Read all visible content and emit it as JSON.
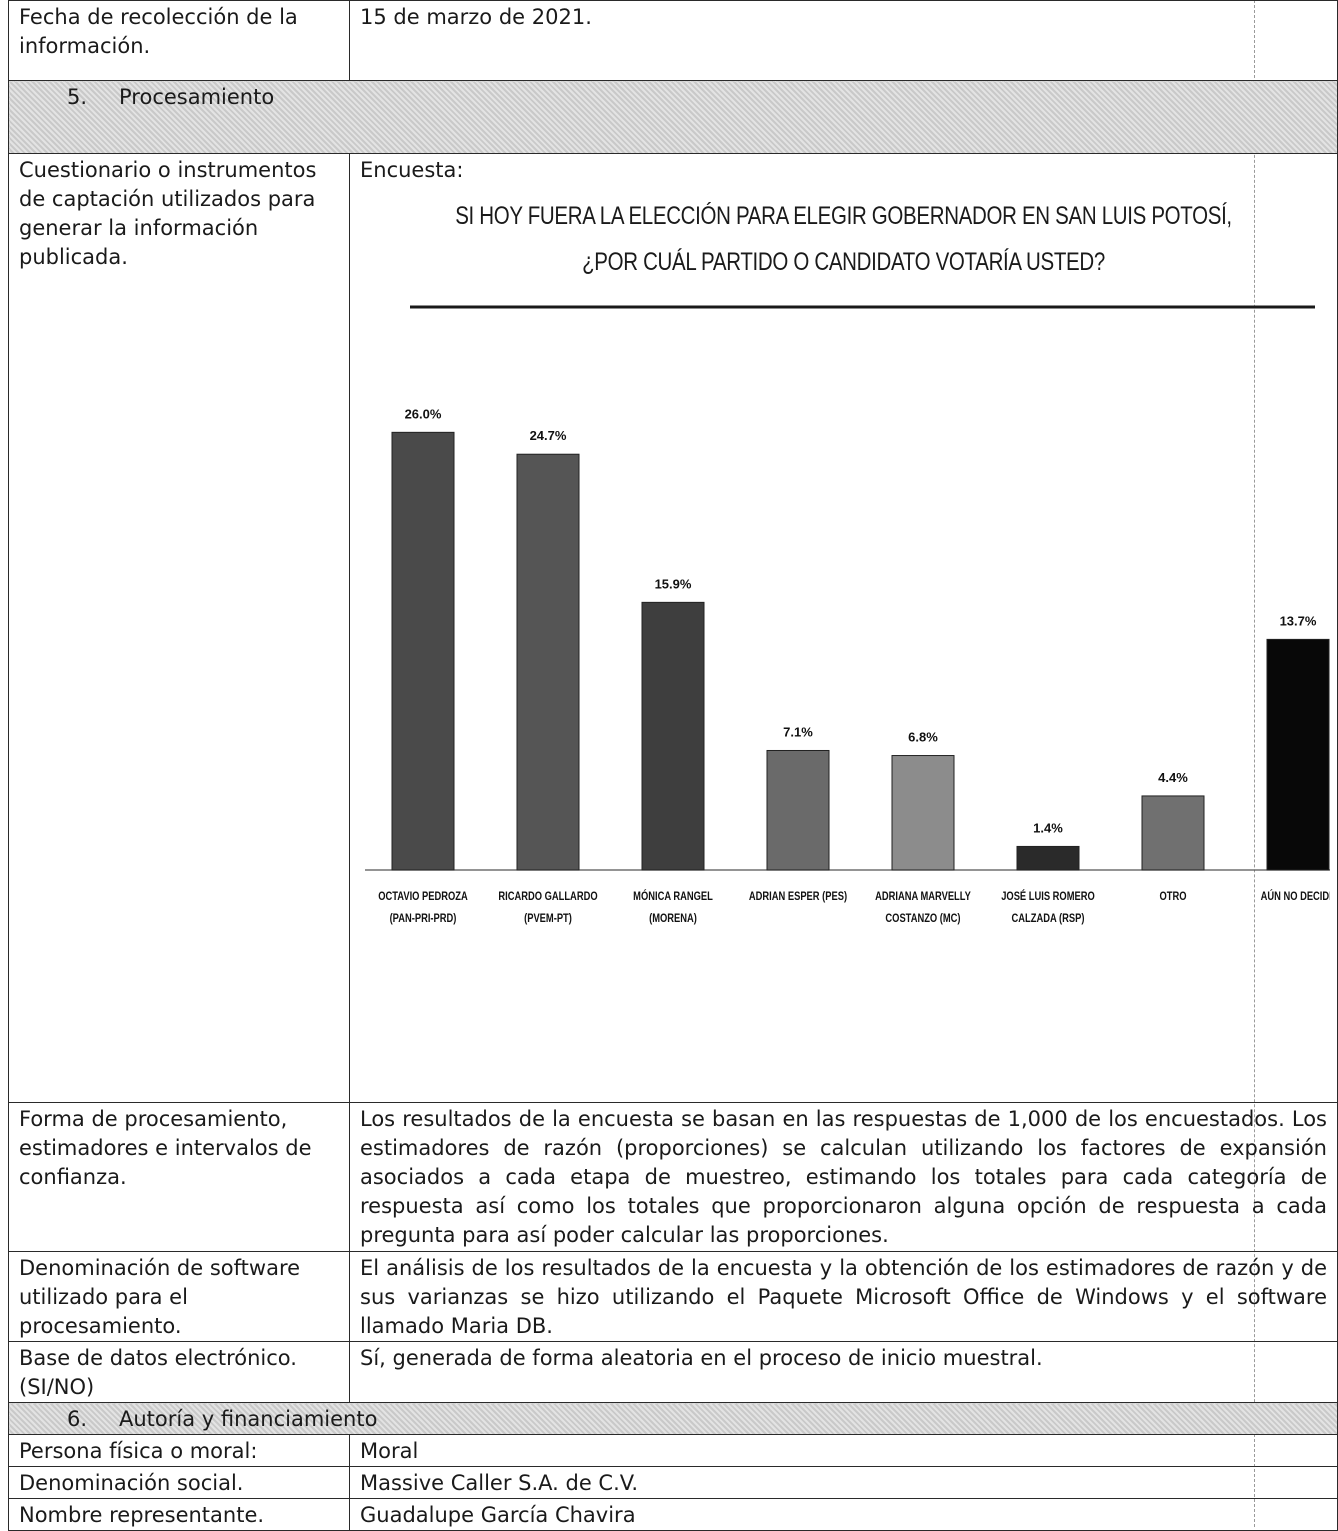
{
  "rows": {
    "fecha": {
      "label": "Fecha de recolección de la información.",
      "value": "15 de marzo de 2021."
    },
    "section5": {
      "number": "5.",
      "title": "Procesamiento"
    },
    "cuestionario": {
      "label": "Cuestionario o instrumentos de captación utilizados para generar la información publicada.",
      "value": "Encuesta:"
    },
    "forma": {
      "label": "Forma de procesamiento, estimadores e intervalos de confianza.",
      "value": "Los resultados de la encuesta se basan en las respuestas de 1,000 de los encuestados. Los estimadores de razón (proporciones) se calculan utilizando los factores de expansión asociados a cada etapa de muestreo, estimando los totales para cada categoría de respuesta así como los totales que proporcionaron alguna opción de respuesta a cada pregunta para así poder calcular las proporciones."
    },
    "software": {
      "label": "Denominación de software utilizado para el procesamiento.",
      "value": "El análisis de los resultados de la encuesta y la obtención de los estimadores de razón y de sus varianzas se hizo utilizando el Paquete Microsoft Office de Windows y el software llamado Maria DB."
    },
    "base": {
      "label": "Base de datos electrónico. (SI/NO)",
      "value": "Sí, generada de forma aleatoria en el proceso de inicio muestral."
    },
    "section6": {
      "number": "6.",
      "title": "Autoría y financiamiento"
    },
    "persona": {
      "label": "Persona física o moral:",
      "value": "Moral"
    },
    "denominacion": {
      "label": "Denominación social.",
      "value": "Massive Caller S.A. de C.V."
    },
    "representante": {
      "label": "Nombre representante.",
      "value": "Guadalupe García Chavira"
    }
  },
  "chart_data": {
    "type": "bar",
    "title_line1": "SI HOY FUERA LA ELECCIÓN PARA ELEGIR GOBERNADOR EN SAN LUIS POTOSÍ,",
    "title_line2": "¿POR CUÁL PARTIDO O CANDIDATO VOTARÍA USTED?",
    "categories": [
      [
        "OCTAVIO PEDROZA",
        "(PAN-PRI-PRD)"
      ],
      [
        "RICARDO GALLARDO",
        "(PVEM-PT)"
      ],
      [
        "MÓNICA RANGEL",
        "(MORENA)"
      ],
      [
        "ADRIAN ESPER (PES)"
      ],
      [
        "ADRIANA MARVELLY",
        "COSTANZO (MC)"
      ],
      [
        "JOSÉ LUIS ROMERO",
        "CALZADA (RSP)"
      ],
      [
        "OTRO"
      ],
      [
        "AÚN NO DECIDE"
      ]
    ],
    "values": [
      26.0,
      24.7,
      15.9,
      7.1,
      6.8,
      1.4,
      4.4,
      13.7
    ],
    "data_labels": [
      "26.0%",
      "24.7%",
      "15.9%",
      "7.1%",
      "6.8%",
      "1.4%",
      "4.4%",
      "13.7%"
    ],
    "bar_colors": [
      "#4a4a4a",
      "#555555",
      "#3e3e3e",
      "#6a6a6a",
      "#8c8c8c",
      "#2a2a2a",
      "#707070",
      "#080808"
    ],
    "ylim": [
      0,
      30
    ],
    "xlabel": "",
    "ylabel": "",
    "grid": false,
    "legend": false
  }
}
